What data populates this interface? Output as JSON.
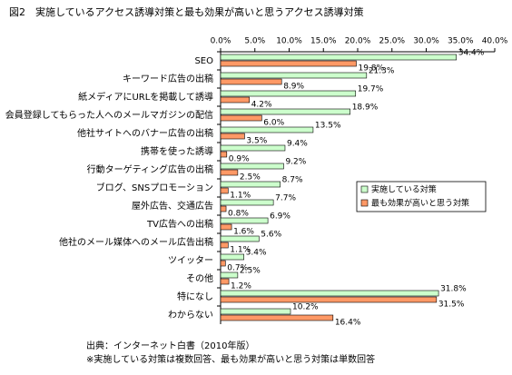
{
  "chart_data": {
    "type": "hbar",
    "title": "図2　実施しているアクセス誘導対策と最も効果が高いと思うアクセス誘導対策",
    "categories": [
      "SEO",
      "キーワード広告の出稿",
      "紙メディアにURLを掲載して誘導",
      "会員登録してもらった人へのメールマガジンの配信",
      "他社サイトへのバナー広告の出稿",
      "携帯を使った誘導",
      "行動ターゲティング広告の出稿",
      "ブログ、SNSプロモーション",
      "屋外広告、交通広告",
      "TV広告への出稿",
      "他社のメール媒体へのメール広告出稿",
      "ツイッター",
      "その他",
      "特になし",
      "わからない"
    ],
    "series": [
      {
        "name": "実施している対策",
        "color": "#ccffcc",
        "values": [
          34.4,
          21.3,
          19.7,
          18.9,
          13.5,
          9.4,
          9.2,
          8.7,
          7.7,
          6.9,
          5.6,
          3.4,
          2.5,
          31.8,
          10.2
        ],
        "value_labels": [
          "34.4%",
          "21.3%",
          "19.7%",
          "18.9%",
          "13.5%",
          "9.4%",
          "9.2%",
          "8.7%",
          "7.7%",
          "6.9%",
          "5.6%",
          "3.4%",
          "2.5%",
          "31.8%",
          "10.2%"
        ]
      },
      {
        "name": "最も効果が高いと思う対策",
        "color": "#ff9966",
        "values": [
          19.8,
          8.9,
          4.2,
          6.0,
          3.5,
          0.9,
          2.5,
          1.1,
          0.8,
          1.6,
          1.1,
          0.7,
          1.2,
          31.5,
          16.4
        ],
        "value_labels": [
          "19.8%",
          "8.9%",
          "4.2%",
          "6.0%",
          "3.5%",
          "0.9%",
          "2.5%",
          "1.1%",
          "0.8%",
          "1.6%",
          "1.1%",
          "0.7%",
          "1.2%",
          "31.5%",
          "16.4%"
        ]
      }
    ],
    "xlim": [
      0,
      40
    ],
    "xticks": [
      {
        "value": 0,
        "label": "0.0%"
      },
      {
        "value": 5,
        "label": "5.0%"
      },
      {
        "value": 10,
        "label": "10.0%"
      },
      {
        "value": 15,
        "label": "15.0%"
      },
      {
        "value": 20,
        "label": "20.0%"
      },
      {
        "value": 25,
        "label": "25.0%"
      },
      {
        "value": 30,
        "label": "30.0%"
      },
      {
        "value": 35,
        "label": "35.0%"
      },
      {
        "value": 40,
        "label": "40.0%"
      }
    ],
    "source": "出典：インターネット白書（2010年版）",
    "note": "※実施している対策は複数回答、最も効果が高いと思う対策は単数回答"
  }
}
